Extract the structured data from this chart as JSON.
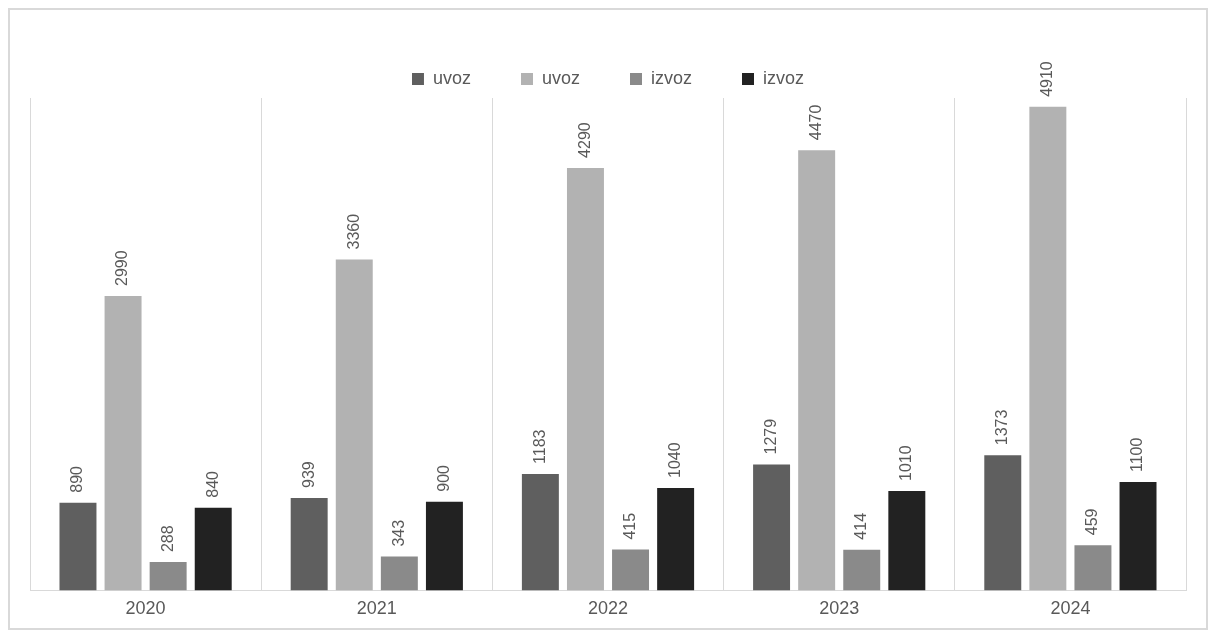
{
  "chart_data": {
    "type": "bar",
    "categories": [
      "2020",
      "2021",
      "2022",
      "2023",
      "2024"
    ],
    "series": [
      {
        "name": "uvoz",
        "color": "#5f5f5f",
        "values": [
          890,
          939,
          1183,
          1279,
          1373
        ]
      },
      {
        "name": "uvoz",
        "color": "#b2b2b2",
        "values": [
          2990,
          3360,
          4290,
          4470,
          4910
        ]
      },
      {
        "name": "izvoz",
        "color": "#8a8a8a",
        "values": [
          288,
          343,
          415,
          414,
          459
        ]
      },
      {
        "name": "izvoz",
        "color": "#222222",
        "values": [
          840,
          900,
          1040,
          1010,
          1100
        ]
      }
    ],
    "data_labels": true,
    "grid": "x",
    "legend": "top"
  }
}
